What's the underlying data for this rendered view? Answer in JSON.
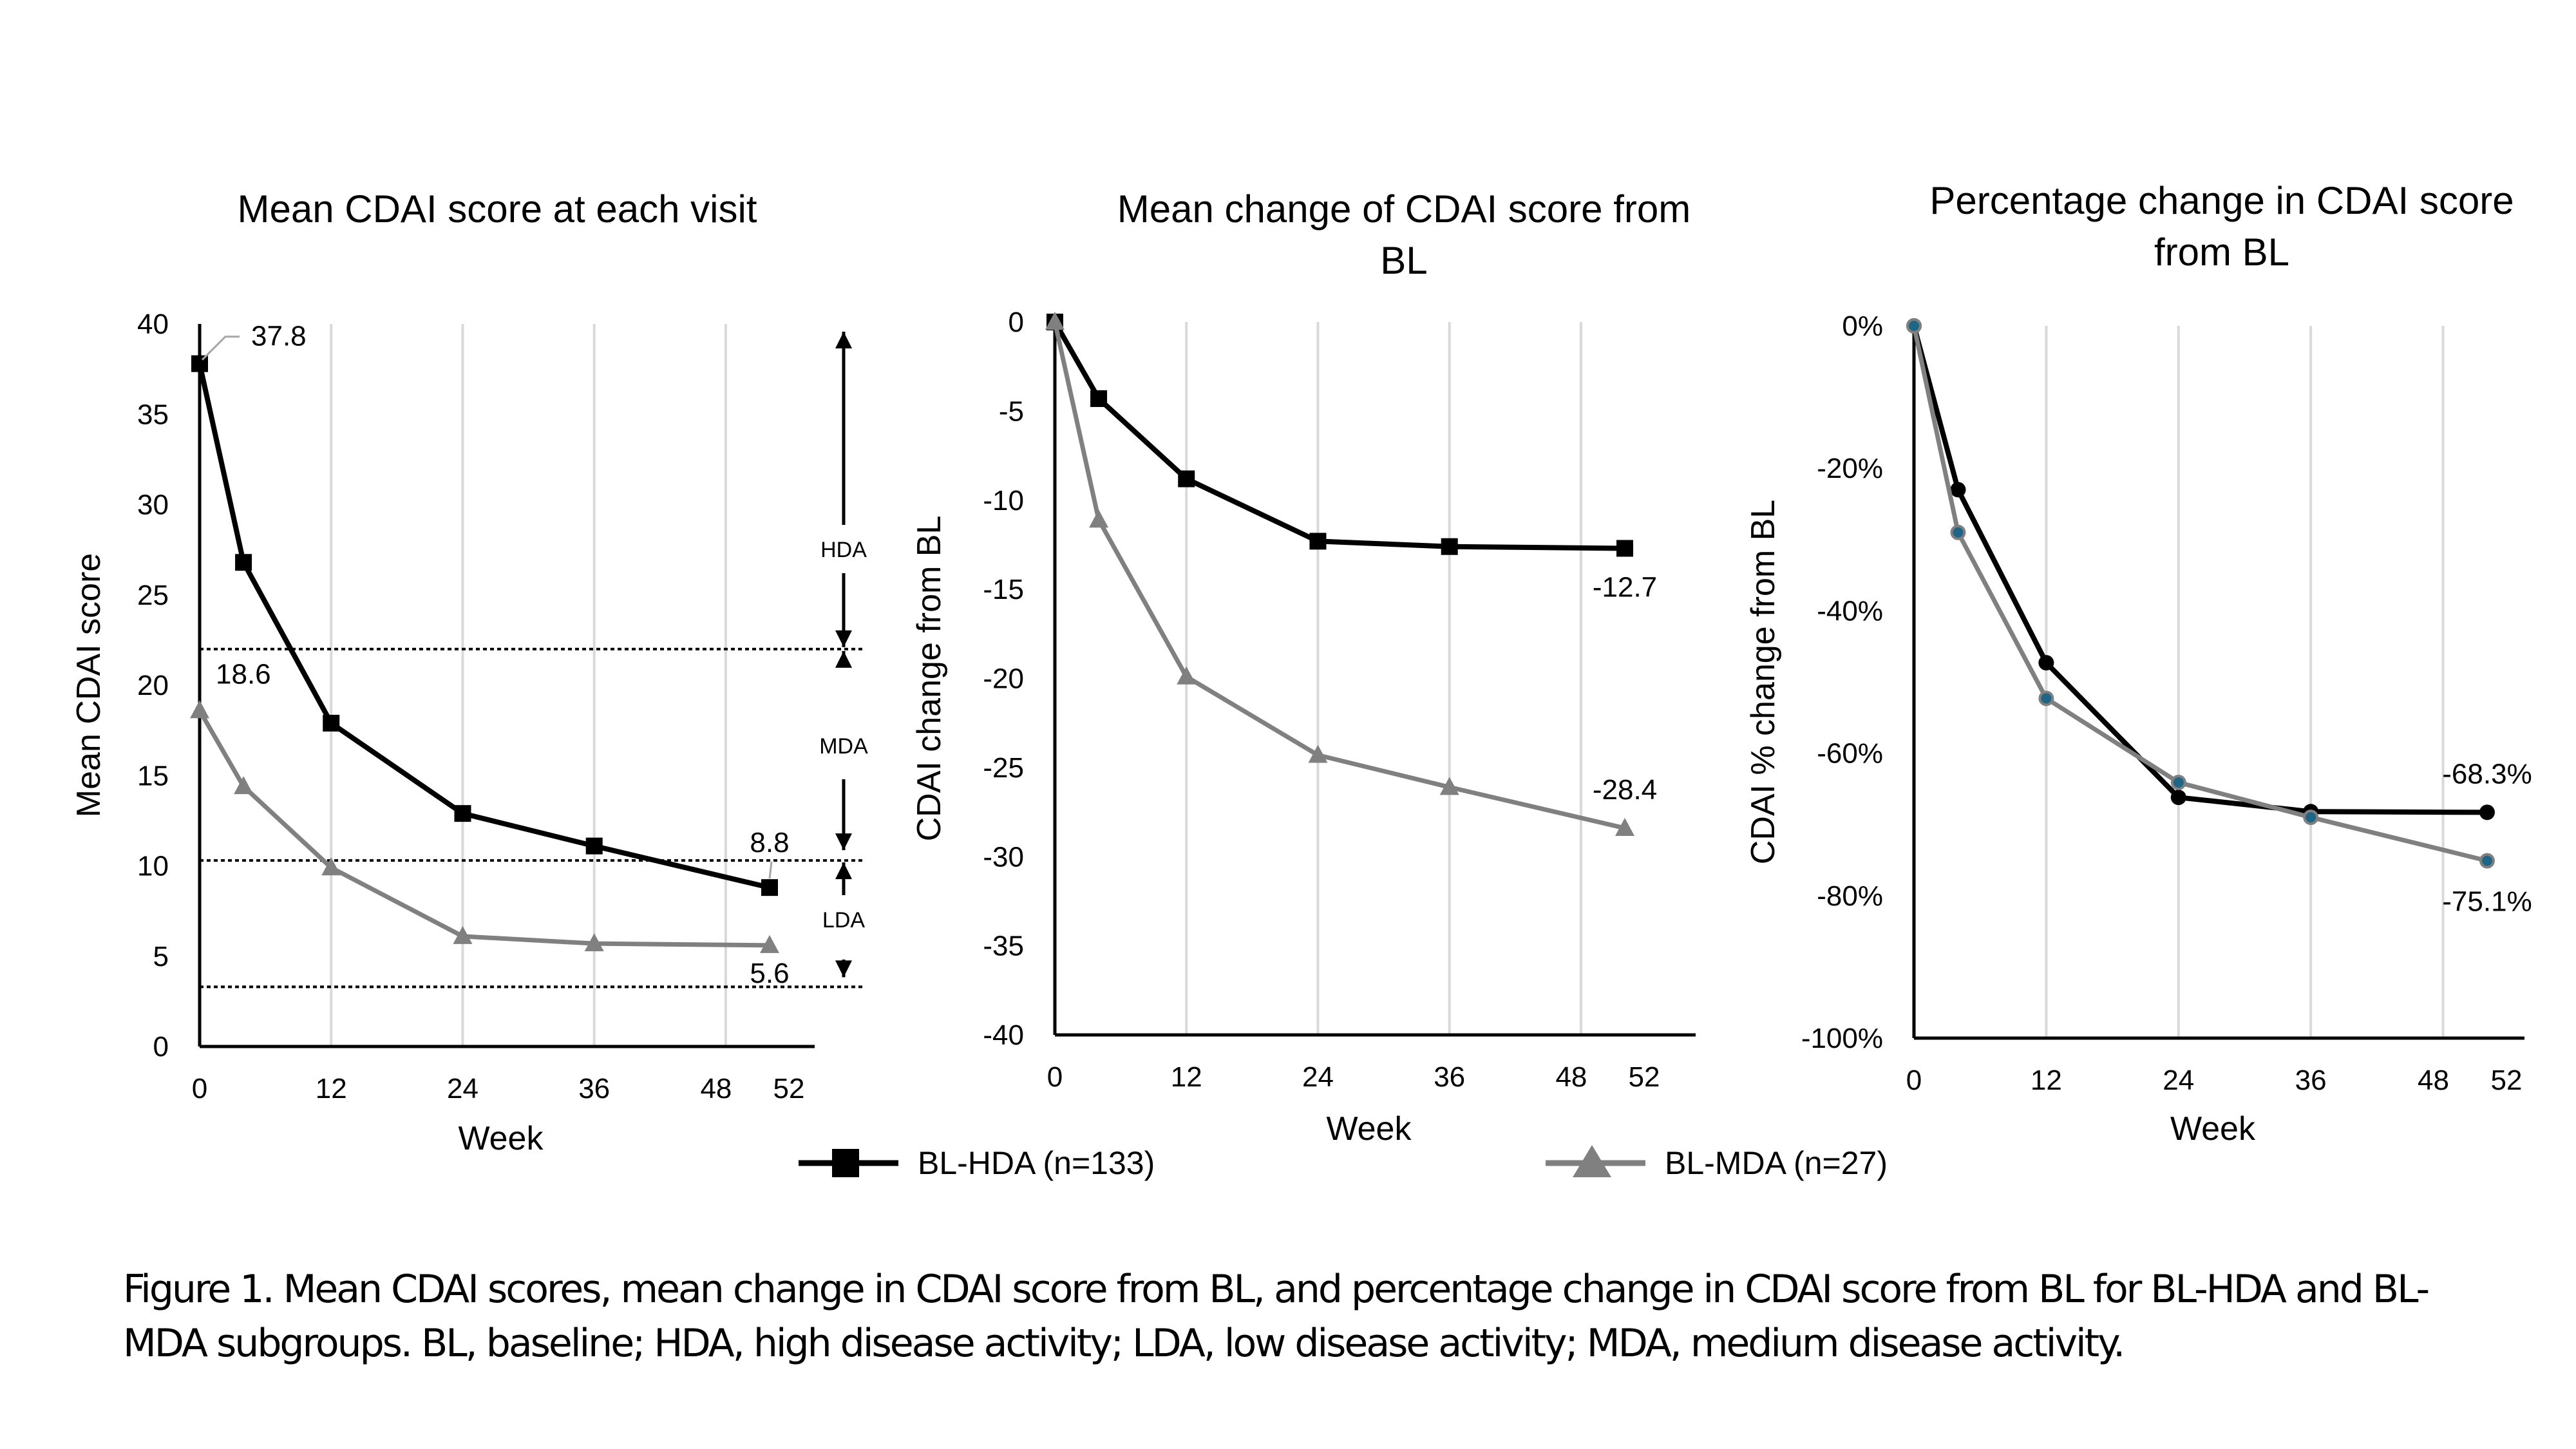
{
  "colors": {
    "hda": "#000000",
    "mda": "#808080",
    "mda_marker_pct": "#1f6585",
    "grid": "#d9d9d9"
  },
  "legend": [
    {
      "label": "BL-HDA (n=133)",
      "marker": "square",
      "color": "#000000"
    },
    {
      "label": "BL-MDA (n=27)",
      "marker": "triangle",
      "color": "#808080"
    }
  ],
  "caption": {
    "line1": "Figure 1. Mean CDAI scores, mean change in CDAI score from BL, and percentage change in CDAI score from BL for BL-HDA and BL-",
    "line2": "MDA subgroups. BL, baseline; HDA, high disease activity; LDA, low disease activity; MDA, medium disease activity."
  },
  "chart_data": [
    {
      "type": "line",
      "title": "Mean CDAI score at each visit",
      "xlabel": "Week",
      "ylabel": "Mean CDAI score",
      "x": [
        0,
        4,
        12,
        24,
        36,
        52
      ],
      "xticks": [
        0,
        12,
        24,
        36,
        48,
        52
      ],
      "yticks": [
        0,
        5,
        10,
        15,
        20,
        25,
        30,
        35,
        40
      ],
      "ylim": [
        0,
        40
      ],
      "xlim": [
        0,
        52
      ],
      "grid": "vertical",
      "series": [
        {
          "name": "BL-HDA (n=133)",
          "marker": "square",
          "values": [
            37.8,
            26.8,
            17.9,
            12.9,
            11.1,
            8.8
          ]
        },
        {
          "name": "BL-MDA (n=27)",
          "marker": "triangle",
          "values": [
            18.6,
            14.4,
            9.9,
            6.1,
            5.7,
            5.6
          ]
        }
      ],
      "data_labels": [
        {
          "series": 0,
          "index": 0,
          "text": "37.8"
        },
        {
          "series": 1,
          "index": 0,
          "text": "18.6"
        },
        {
          "series": 0,
          "index": 5,
          "text": "8.8"
        },
        {
          "series": 1,
          "index": 5,
          "text": "5.6"
        }
      ],
      "thresholds": [
        22,
        10.3,
        3.3
      ],
      "zones": [
        "HDA",
        "MDA",
        "LDA"
      ]
    },
    {
      "type": "line",
      "title": "Mean change of CDAI score from BL",
      "xlabel": "Week",
      "ylabel": "CDAI change from BL",
      "x": [
        0,
        4,
        12,
        24,
        36,
        52
      ],
      "xticks": [
        0,
        12,
        24,
        36,
        48,
        52
      ],
      "yticks": [
        0,
        -5,
        -10,
        -15,
        -20,
        -25,
        -30,
        -35,
        -40
      ],
      "ylim": [
        -40,
        0
      ],
      "xlim": [
        0,
        52
      ],
      "grid": "vertical",
      "series": [
        {
          "name": "BL-HDA (n=133)",
          "marker": "square",
          "values": [
            0,
            -4.3,
            -8.8,
            -12.3,
            -12.6,
            -12.7
          ]
        },
        {
          "name": "BL-MDA (n=27)",
          "marker": "triangle",
          "values": [
            0,
            -11.1,
            -19.9,
            -24.3,
            -26.1,
            -28.4
          ]
        }
      ],
      "data_labels": [
        {
          "series": 0,
          "index": 5,
          "text": "-12.7"
        },
        {
          "series": 1,
          "index": 5,
          "text": "-28.4"
        }
      ]
    },
    {
      "type": "line",
      "title": "Percentage change in CDAI score from BL",
      "xlabel": "Week",
      "ylabel": "CDAI % change from BL",
      "x": [
        0,
        4,
        12,
        24,
        36,
        52
      ],
      "xticks": [
        0,
        12,
        24,
        36,
        48,
        52
      ],
      "yticks": [
        0,
        -20,
        -40,
        -60,
        -80,
        -100
      ],
      "ytick_labels": [
        "0%",
        "-20%",
        "-40%",
        "-60%",
        "-80%",
        "-100%"
      ],
      "ylim": [
        -100,
        0
      ],
      "xlim": [
        0,
        52
      ],
      "grid": "vertical",
      "series": [
        {
          "name": "BL-HDA (n=133)",
          "marker": "circle",
          "values": [
            0,
            -23.0,
            -47.3,
            -66.2,
            -68.2,
            -68.3
          ]
        },
        {
          "name": "BL-MDA (n=27)",
          "marker": "circle",
          "values": [
            0,
            -29.0,
            -52.3,
            -64.1,
            -69.0,
            -75.1
          ]
        }
      ],
      "data_labels": [
        {
          "series": 0,
          "index": 5,
          "text": "-68.3%"
        },
        {
          "series": 1,
          "index": 5,
          "text": "-75.1%"
        }
      ]
    }
  ]
}
